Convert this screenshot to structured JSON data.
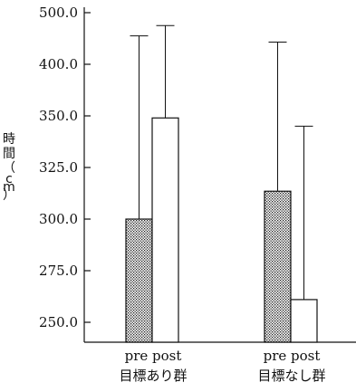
{
  "chart_data": {
    "type": "bar",
    "title": "",
    "ylabel": "時間（cm）",
    "yticks": [
      "500.0",
      "400.0",
      "350.0",
      "325.0",
      "300.0",
      "275.0",
      "250.0"
    ],
    "groups": [
      {
        "name": "目標あり群",
        "bars": [
          {
            "label": "pre",
            "value": 300.0,
            "error_top": 455.0,
            "pattern": "dotted"
          },
          {
            "label": "post",
            "value": 349.0,
            "error_top": 475.0,
            "pattern": "white"
          }
        ]
      },
      {
        "name": "目標なし群",
        "bars": [
          {
            "label": "pre",
            "value": 313.5,
            "error_top": 443.0,
            "pattern": "dotted"
          },
          {
            "label": "post",
            "value": 261.0,
            "error_top": 345.0,
            "pattern": "white"
          }
        ]
      }
    ]
  }
}
